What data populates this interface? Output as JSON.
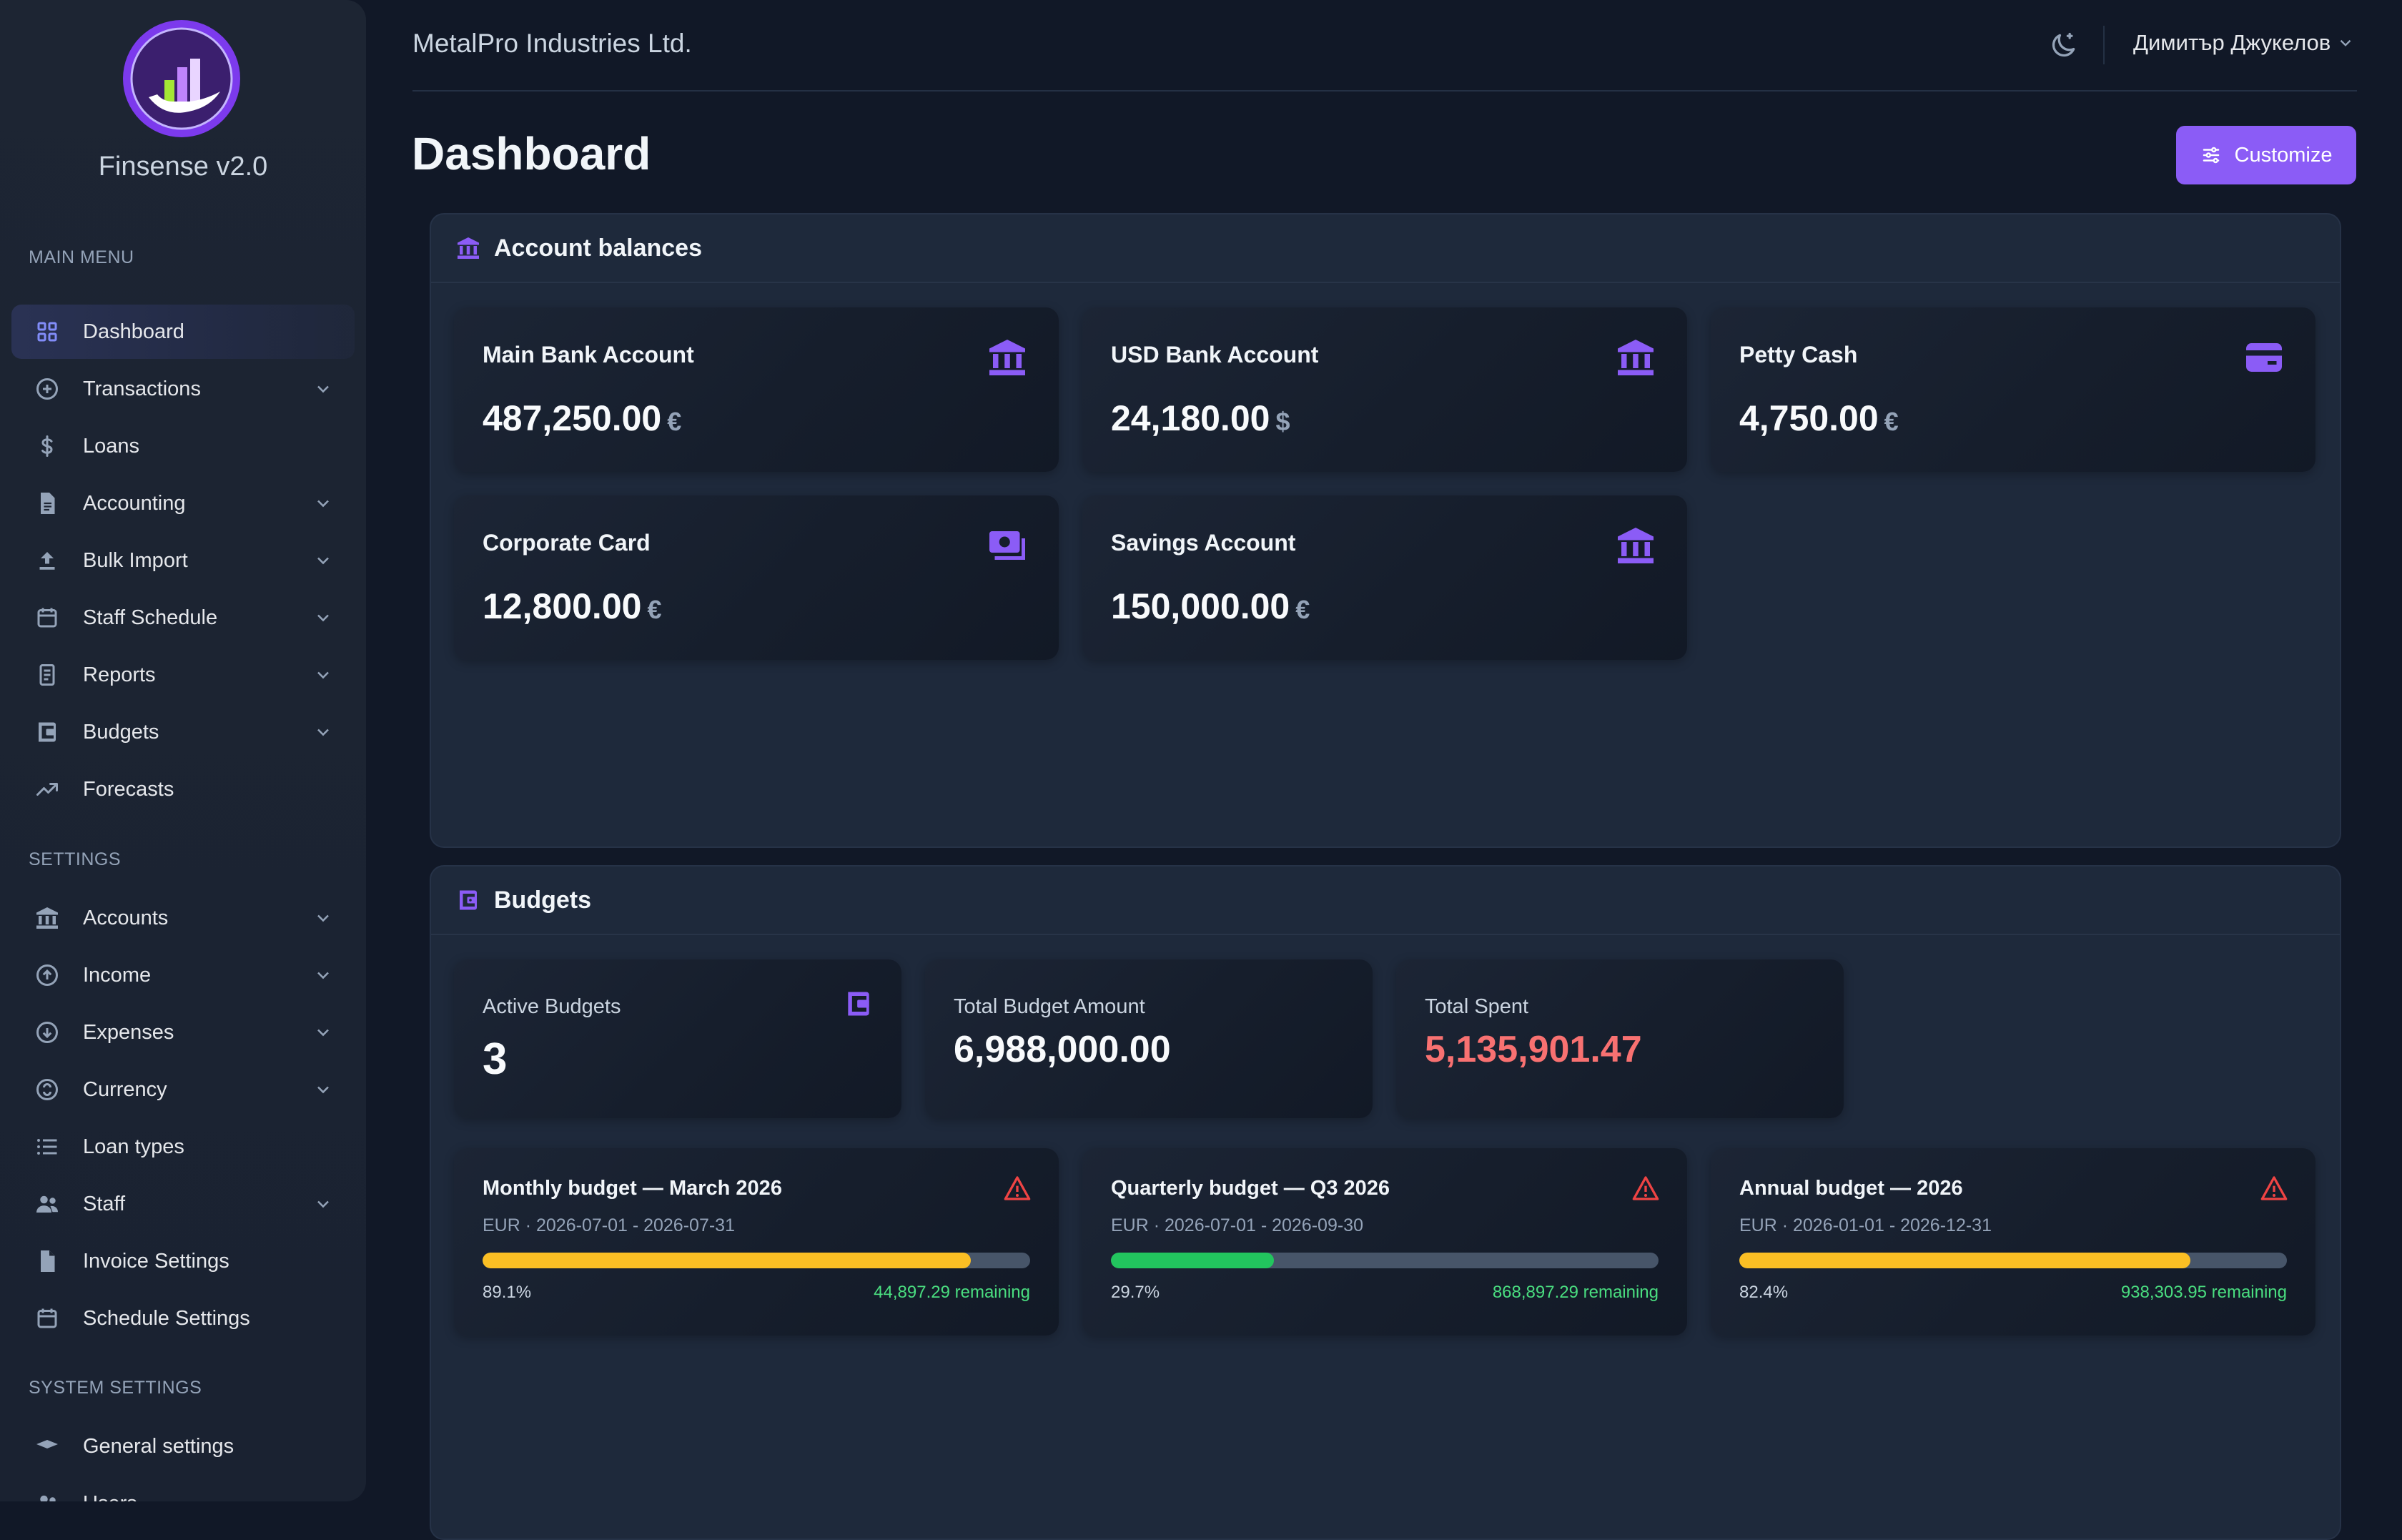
{
  "app": {
    "brand": "Finsense v2.0",
    "company": "MetalPro Industries Ltd.",
    "user": "Димитър Джукелов"
  },
  "sidebar": {
    "main_label": "MAIN MENU",
    "main": [
      {
        "label": "Dashboard",
        "icon": "grid-icon",
        "chevron": false,
        "active": true
      },
      {
        "label": "Transactions",
        "icon": "plus-circle-icon",
        "chevron": true
      },
      {
        "label": "Loans",
        "icon": "dollar-icon",
        "chevron": false
      },
      {
        "label": "Accounting",
        "icon": "document-icon",
        "chevron": true
      },
      {
        "label": "Bulk Import",
        "icon": "upload-icon",
        "chevron": true
      },
      {
        "label": "Staff Schedule",
        "icon": "calendar-icon",
        "chevron": true
      },
      {
        "label": "Reports",
        "icon": "report-icon",
        "chevron": true
      },
      {
        "label": "Budgets",
        "icon": "wallet-icon",
        "chevron": true
      },
      {
        "label": "Forecasts",
        "icon": "trend-icon",
        "chevron": false
      }
    ],
    "settings_label": "SETTINGS",
    "settings": [
      {
        "label": "Accounts",
        "icon": "bank-icon",
        "chevron": true
      },
      {
        "label": "Income",
        "icon": "arrow-up-circle-icon",
        "chevron": true
      },
      {
        "label": "Expenses",
        "icon": "arrow-down-circle-icon",
        "chevron": true
      },
      {
        "label": "Currency",
        "icon": "currency-icon",
        "chevron": true
      },
      {
        "label": "Loan types",
        "icon": "list-icon",
        "chevron": false
      },
      {
        "label": "Staff",
        "icon": "users-icon",
        "chevron": true
      },
      {
        "label": "Invoice Settings",
        "icon": "invoice-icon",
        "chevron": false
      },
      {
        "label": "Schedule Settings",
        "icon": "calendar-icon",
        "chevron": false
      }
    ],
    "system_label": "SYSTEM SETTINGS",
    "system": [
      {
        "label": "General settings",
        "icon": "cap-icon",
        "chevron": false
      },
      {
        "label": "Users",
        "icon": "users-icon",
        "chevron": false
      }
    ]
  },
  "page": {
    "title": "Dashboard",
    "customize_label": "Customize"
  },
  "balances": {
    "title": "Account balances",
    "accounts": [
      {
        "name": "Main Bank Account",
        "amount": "487,250.00",
        "currency": "€",
        "icon": "bank-icon"
      },
      {
        "name": "USD Bank Account",
        "amount": "24,180.00",
        "currency": "$",
        "icon": "bank-icon"
      },
      {
        "name": "Petty Cash",
        "amount": "4,750.00",
        "currency": "€",
        "icon": "credit-card-icon"
      },
      {
        "name": "Corporate Card",
        "amount": "12,800.00",
        "currency": "€",
        "icon": "cash-icon"
      },
      {
        "name": "Savings Account",
        "amount": "150,000.00",
        "currency": "€",
        "icon": "bank-icon"
      }
    ]
  },
  "budgets": {
    "title": "Budgets",
    "stats": [
      {
        "label": "Active Budgets",
        "value": "3"
      },
      {
        "label": "Total Budget Amount",
        "value": "6,988,000.00"
      },
      {
        "label": "Total Spent",
        "value": "5,135,901.47"
      }
    ],
    "items": [
      {
        "name": "Monthly budget — March 2026",
        "meta": "EUR · 2026-07-01 - 2026-07-31",
        "percent_label": "89.1%",
        "percent": 89.1,
        "remaining": "44,897.29 remaining",
        "bar_color": "#fbbf24"
      },
      {
        "name": "Quarterly budget — Q3 2026",
        "meta": "EUR · 2026-07-01 - 2026-09-30",
        "percent_label": "29.7%",
        "percent": 29.7,
        "remaining": "868,897.29 remaining",
        "bar_color": "#22c55e"
      },
      {
        "name": "Annual budget — 2026",
        "meta": "EUR · 2026-01-01 - 2026-12-31",
        "percent_label": "82.4%",
        "percent": 82.4,
        "remaining": "938,303.95 remaining",
        "bar_color": "#fbbf24"
      }
    ]
  },
  "colors": {
    "accent": "#8b5cf6",
    "danger": "#ef4444",
    "success": "#4ade80",
    "background": "#111827",
    "panel": "#1e293b"
  }
}
